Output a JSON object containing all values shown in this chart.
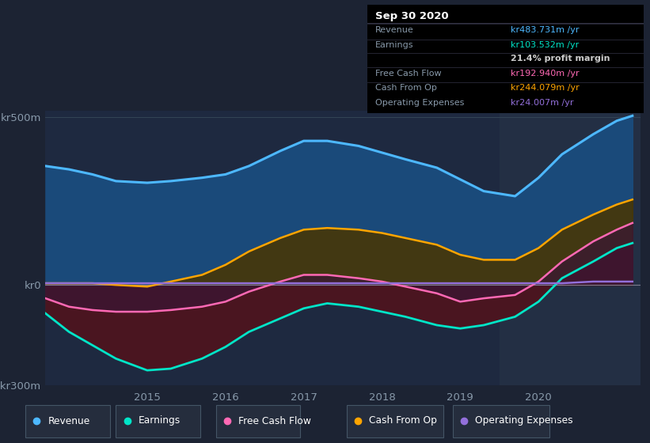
{
  "bg_color": "#1c2333",
  "panel_bg_color": "#1e2940",
  "highlight_bg": "#232f44",
  "ylim": [
    -300,
    520
  ],
  "xlim": [
    2013.7,
    2021.3
  ],
  "yticks": [
    500,
    0,
    -300
  ],
  "ytick_labels": [
    "kr500m",
    "kr0",
    "-kr300m"
  ],
  "xticks": [
    2015,
    2016,
    2017,
    2018,
    2019,
    2020
  ],
  "highlight_xmin": 2019.5,
  "highlight_xmax": 2021.3,
  "title_box": {
    "date": "Sep 30 2020",
    "label_color": "#8899aa",
    "rows": [
      {
        "label": "Revenue",
        "value": "kr483.731m /yr",
        "value_color": "#4db8ff"
      },
      {
        "label": "Earnings",
        "value": "kr103.532m /yr",
        "value_color": "#00e5c8"
      },
      {
        "label": "",
        "value": "21.4% profit margin",
        "value_color": "#cccccc"
      },
      {
        "label": "Free Cash Flow",
        "value": "kr192.940m /yr",
        "value_color": "#ff69b4"
      },
      {
        "label": "Cash From Op",
        "value": "kr244.079m /yr",
        "value_color": "#ffa500"
      },
      {
        "label": "Operating Expenses",
        "value": "kr24.007m /yr",
        "value_color": "#9370db"
      }
    ]
  },
  "legend": [
    {
      "label": "Revenue",
      "color": "#4db8ff"
    },
    {
      "label": "Earnings",
      "color": "#00e5c8"
    },
    {
      "label": "Free Cash Flow",
      "color": "#ff69b4"
    },
    {
      "label": "Cash From Op",
      "color": "#ffa500"
    },
    {
      "label": "Operating Expenses",
      "color": "#9370db"
    }
  ],
  "years": [
    2013.7,
    2014.0,
    2014.3,
    2014.6,
    2015.0,
    2015.3,
    2015.7,
    2016.0,
    2016.3,
    2016.7,
    2017.0,
    2017.3,
    2017.7,
    2018.0,
    2018.3,
    2018.7,
    2019.0,
    2019.3,
    2019.7,
    2020.0,
    2020.3,
    2020.7,
    2021.0,
    2021.2
  ],
  "revenue": [
    355,
    345,
    330,
    310,
    305,
    310,
    320,
    330,
    355,
    400,
    430,
    430,
    415,
    395,
    375,
    350,
    315,
    280,
    265,
    320,
    390,
    450,
    490,
    505
  ],
  "earnings": [
    -85,
    -140,
    -180,
    -220,
    -255,
    -250,
    -220,
    -185,
    -140,
    -100,
    -70,
    -55,
    -65,
    -80,
    -95,
    -120,
    -130,
    -120,
    -95,
    -50,
    20,
    70,
    110,
    125
  ],
  "free_cash_flow": [
    -40,
    -65,
    -75,
    -80,
    -80,
    -75,
    -65,
    -50,
    -20,
    10,
    30,
    30,
    20,
    10,
    -5,
    -25,
    -50,
    -40,
    -30,
    10,
    70,
    130,
    165,
    185
  ],
  "cash_from_op": [
    5,
    5,
    5,
    0,
    -5,
    10,
    30,
    60,
    100,
    140,
    165,
    170,
    165,
    155,
    140,
    120,
    90,
    75,
    75,
    110,
    165,
    210,
    240,
    255
  ],
  "op_expenses": [
    5,
    5,
    5,
    5,
    5,
    5,
    5,
    5,
    5,
    5,
    5,
    5,
    5,
    5,
    5,
    5,
    5,
    5,
    5,
    5,
    5,
    10,
    10,
    10
  ]
}
